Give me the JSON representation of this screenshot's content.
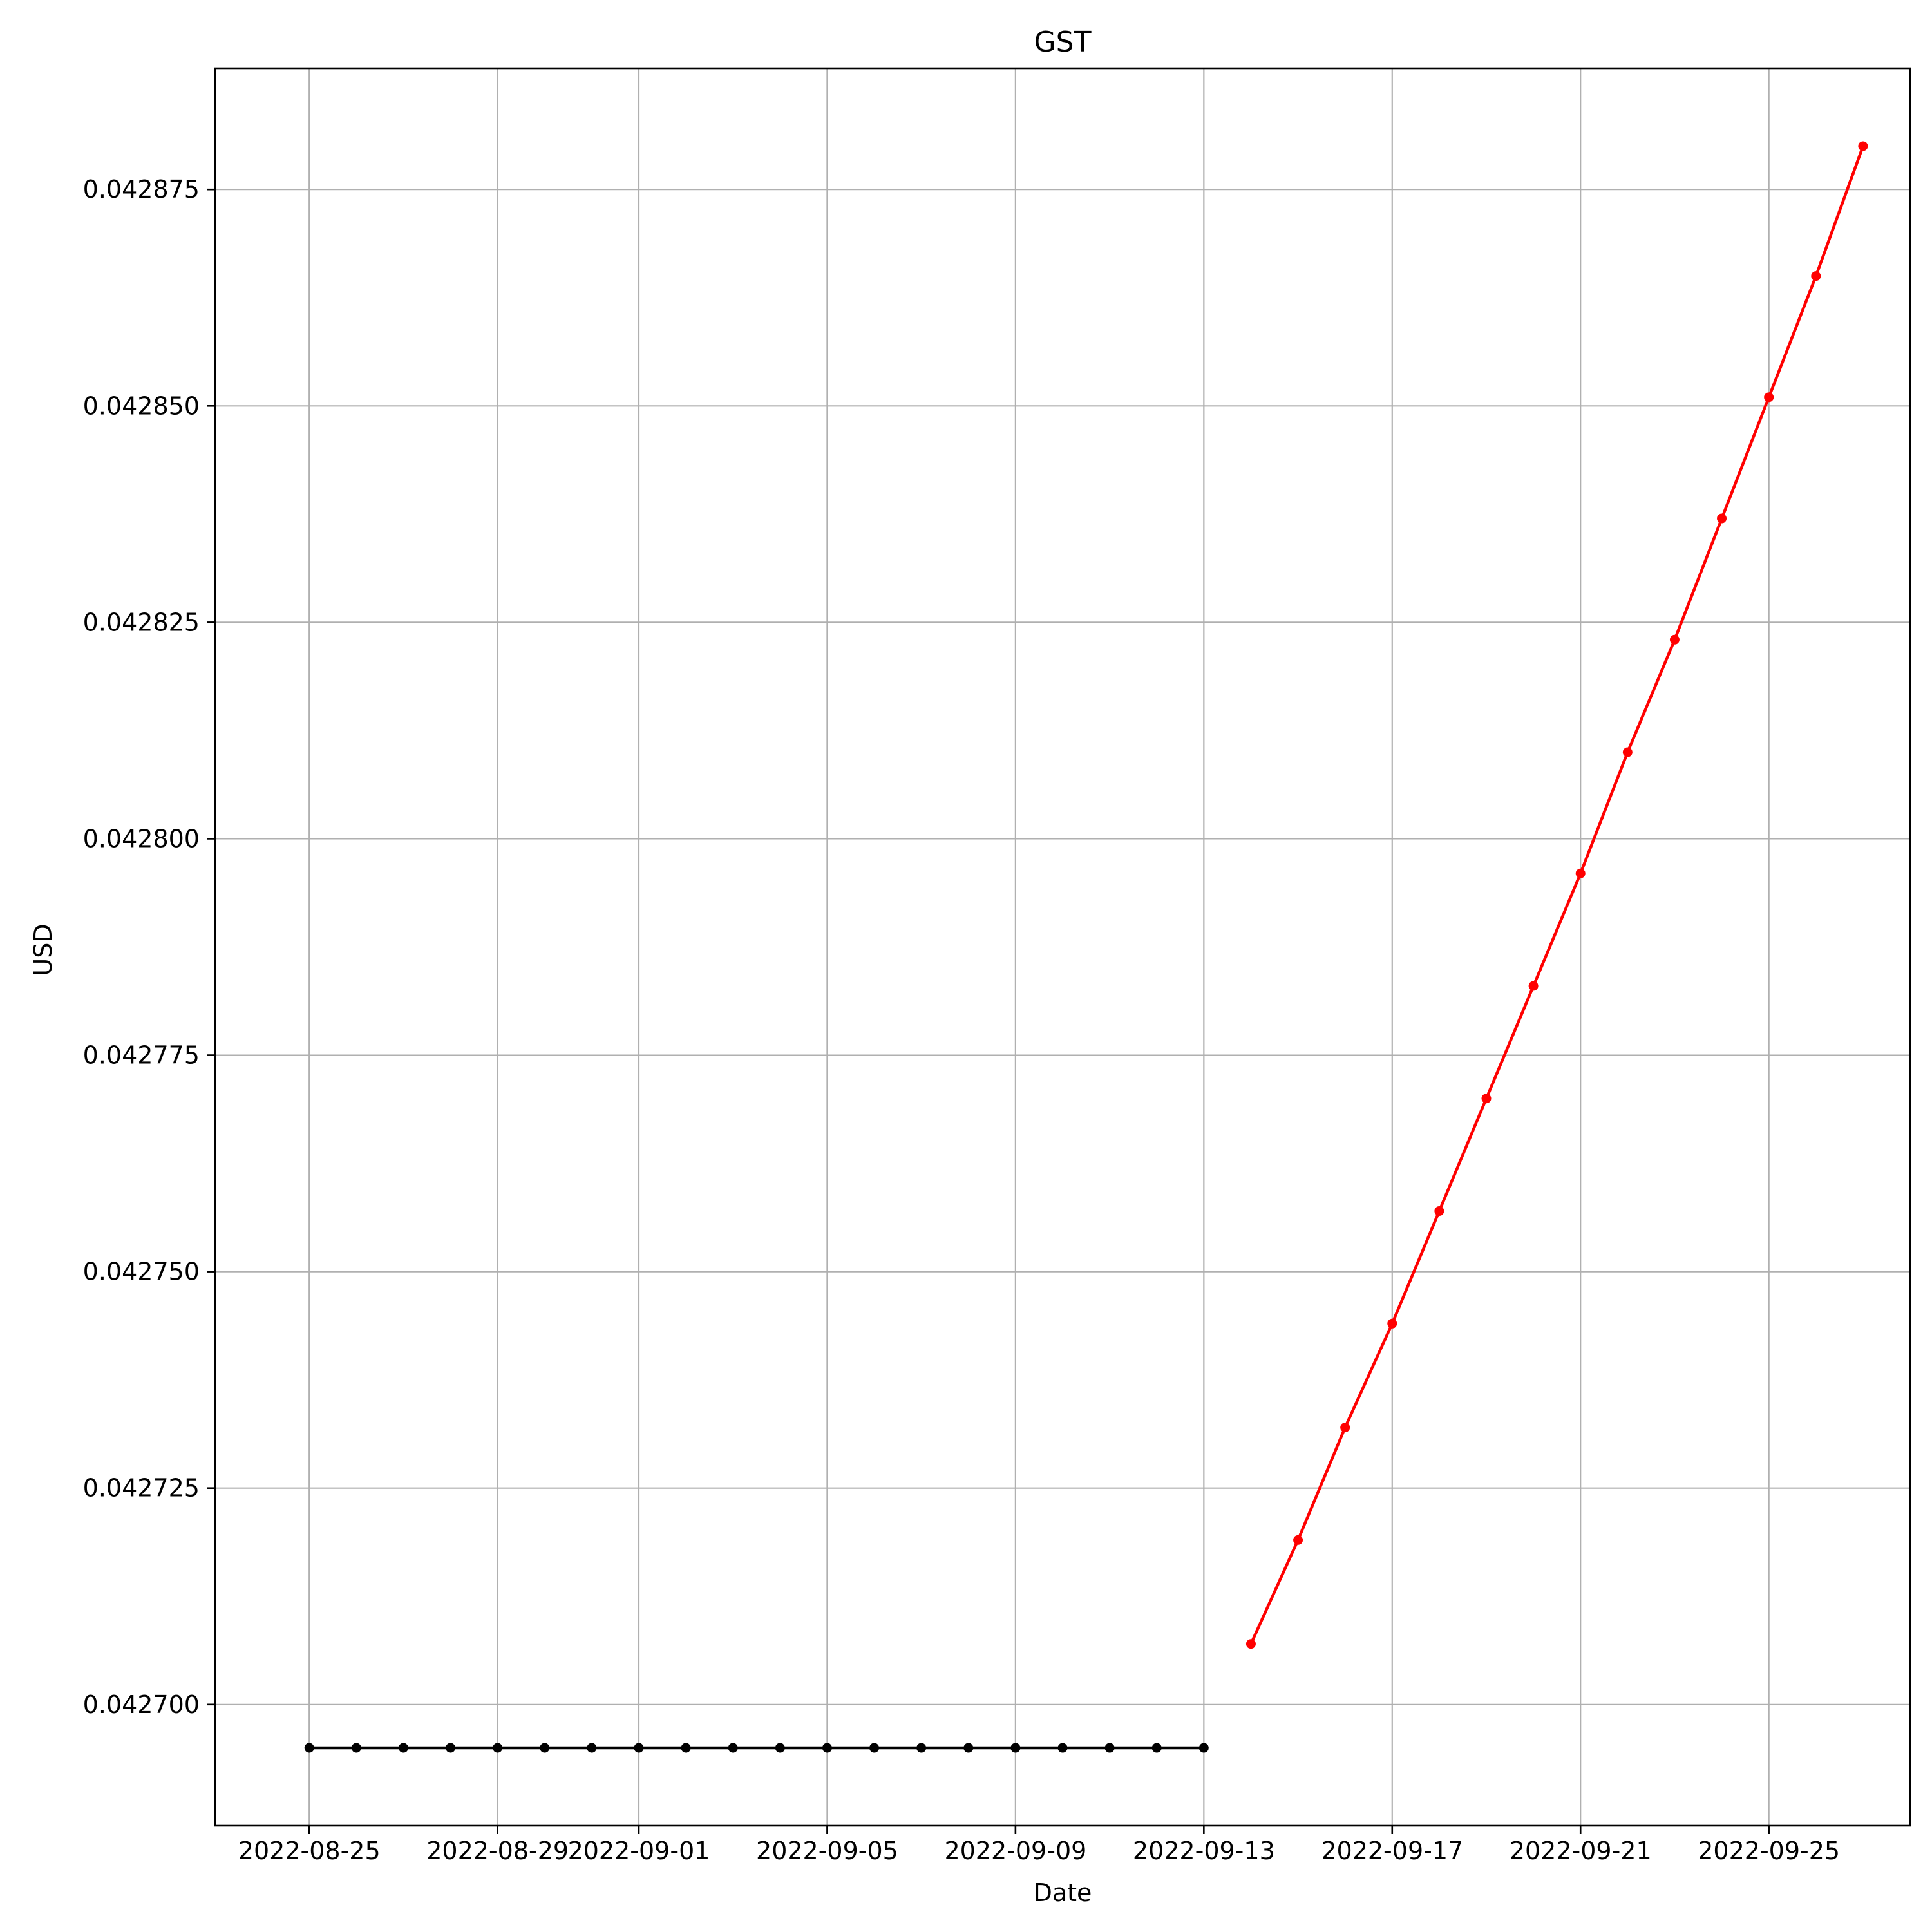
{
  "chart_data": {
    "type": "line",
    "title": "GST",
    "xlabel": "Date",
    "ylabel": "USD",
    "x_axis_type": "date",
    "xlim": [
      "2022-08-23",
      "2022-09-28"
    ],
    "ylim": [
      0.042686,
      0.042889
    ],
    "x_tick_labels": [
      "2022-08-25",
      "2022-08-29",
      "2022-09-01",
      "2022-09-05",
      "2022-09-09",
      "2022-09-13",
      "2022-09-17",
      "2022-09-21",
      "2022-09-25"
    ],
    "y_tick_labels": [
      "0.042700",
      "0.042725",
      "0.042750",
      "0.042775",
      "0.042800",
      "0.042825",
      "0.042850",
      "0.042875"
    ],
    "grid": true,
    "series": [
      {
        "color": "#000000",
        "x": [
          "2022-08-25",
          "2022-08-26",
          "2022-08-27",
          "2022-08-28",
          "2022-08-29",
          "2022-08-30",
          "2022-08-31",
          "2022-09-01",
          "2022-09-02",
          "2022-09-03",
          "2022-09-04",
          "2022-09-05",
          "2022-09-06",
          "2022-09-07",
          "2022-09-08",
          "2022-09-09",
          "2022-09-10",
          "2022-09-11",
          "2022-09-12",
          "2022-09-13"
        ],
        "y": [
          0.042695,
          0.042695,
          0.042695,
          0.042695,
          0.042695,
          0.042695,
          0.042695,
          0.042695,
          0.042695,
          0.042695,
          0.042695,
          0.042695,
          0.042695,
          0.042695,
          0.042695,
          0.042695,
          0.042695,
          0.042695,
          0.042695,
          0.042695
        ]
      },
      {
        "color": "#ff0000",
        "x": [
          "2022-09-14",
          "2022-09-15",
          "2022-09-16",
          "2022-09-17",
          "2022-09-18",
          "2022-09-19",
          "2022-09-20",
          "2022-09-21",
          "2022-09-22",
          "2022-09-23",
          "2022-09-24",
          "2022-09-25",
          "2022-09-26",
          "2022-09-27"
        ],
        "y": [
          0.042707,
          0.042719,
          0.042732,
          0.042744,
          0.042757,
          0.04277,
          0.042783,
          0.042796,
          0.04281,
          0.042823,
          0.042837,
          0.042851,
          0.042865,
          0.04288
        ]
      }
    ]
  }
}
